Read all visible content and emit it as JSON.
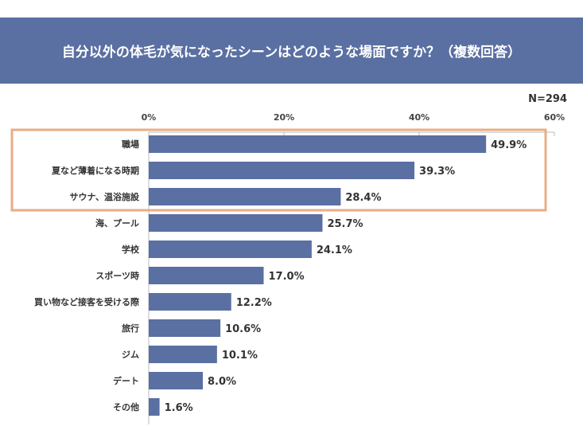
{
  "header": {
    "title": "自分以外の体毛が気になったシーンはどのような場面ですか？（複数回答）"
  },
  "sample_size": "N=294",
  "colors": {
    "bar": "#5a6fa2",
    "highlight": "#e8ad87",
    "header": "#5a6fa2"
  },
  "chart_data": {
    "type": "bar",
    "orientation": "horizontal",
    "title": "自分以外の体毛が気になったシーンはどのような場面ですか？（複数回答）",
    "categories": [
      "職場",
      "夏など薄着になる時期",
      "サウナ、温浴施設",
      "海、プール",
      "学校",
      "スポーツ時",
      "買い物など接客を受ける際",
      "旅行",
      "ジム",
      "デート",
      "その他"
    ],
    "values": [
      49.9,
      39.3,
      28.4,
      25.7,
      24.1,
      17.0,
      12.2,
      10.6,
      10.1,
      8.0,
      1.6
    ],
    "value_labels": [
      "49.9%",
      "39.3%",
      "28.4%",
      "25.7%",
      "24.1%",
      "17.0%",
      "12.2%",
      "10.6%",
      "10.1%",
      "8.0%",
      "1.6%"
    ],
    "xlim": [
      0,
      60
    ],
    "ticks": [
      0,
      20,
      40,
      60
    ],
    "tick_labels": [
      "0%",
      "20%",
      "40%",
      "60%"
    ],
    "highlighted_categories": [
      "職場",
      "夏など薄着になる時期",
      "サウナ、温浴施設"
    ]
  }
}
